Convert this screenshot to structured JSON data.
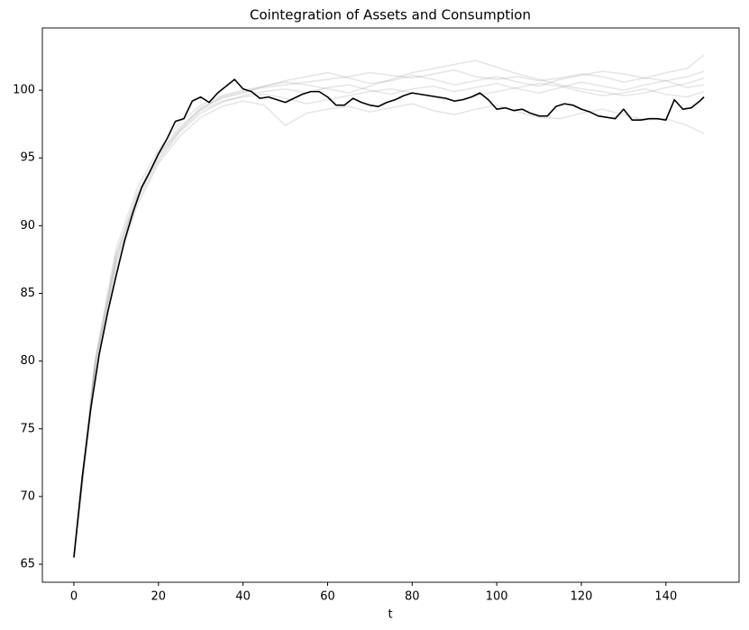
{
  "chart_data": {
    "type": "line",
    "title": "Cointegration of Assets and Consumption",
    "xlabel": "t",
    "xlim": [
      -7.45,
      157.3
    ],
    "ylim": [
      63.67,
      104.6
    ],
    "xticks": [
      0,
      20,
      40,
      60,
      80,
      100,
      120,
      140
    ],
    "yticks": [
      65,
      70,
      75,
      80,
      85,
      90,
      95,
      100
    ],
    "series": [
      {
        "color": "#808080",
        "alpha": 0.2,
        "x": [
          0,
          5,
          10,
          15,
          20,
          25,
          30,
          35,
          40,
          45,
          50,
          55,
          60,
          65,
          70,
          75,
          80,
          85,
          90,
          95,
          100,
          105,
          110,
          115,
          120,
          125,
          130,
          135,
          140,
          145,
          149
        ],
        "values": [
          65.5,
          79.8,
          87.9,
          92.4,
          95.3,
          97.3,
          98.6,
          99.5,
          99.9,
          100.2,
          100.4,
          100.6,
          100.8,
          101.0,
          101.3,
          101.1,
          100.9,
          101.2,
          101.5,
          101.0,
          100.8,
          101.0,
          100.7,
          100.9,
          101.2,
          101.0,
          100.6,
          100.9,
          101.3,
          101.6,
          102.6
        ]
      },
      {
        "color": "#808080",
        "alpha": 0.2,
        "x": [
          0,
          5,
          10,
          15,
          20,
          25,
          30,
          35,
          40,
          45,
          50,
          55,
          60,
          65,
          70,
          75,
          80,
          85,
          90,
          95,
          100,
          105,
          110,
          115,
          120,
          125,
          130,
          135,
          140,
          145,
          149
        ],
        "values": [
          65.5,
          79.2,
          87.2,
          91.8,
          94.8,
          96.9,
          98.3,
          99.1,
          99.6,
          99.9,
          100.1,
          99.8,
          100.2,
          100.4,
          100.0,
          99.7,
          100.1,
          100.3,
          99.9,
          100.2,
          100.5,
          100.1,
          99.8,
          100.2,
          100.6,
          100.3,
          100.0,
          100.4,
          100.7,
          100.2,
          100.4
        ]
      },
      {
        "color": "#808080",
        "alpha": 0.2,
        "x": [
          0,
          5,
          10,
          15,
          20,
          25,
          30,
          35,
          40,
          45,
          50,
          55,
          60,
          65,
          70,
          75,
          80,
          85,
          90,
          95,
          100,
          105,
          110,
          115,
          120,
          125,
          130,
          135,
          140,
          145,
          149
        ],
        "values": [
          65.5,
          78.9,
          86.8,
          91.5,
          94.6,
          96.6,
          98.0,
          98.8,
          99.2,
          98.9,
          97.4,
          98.3,
          98.6,
          98.8,
          98.4,
          98.7,
          99.0,
          98.5,
          98.2,
          98.6,
          98.9,
          98.4,
          98.0,
          97.9,
          98.3,
          98.6,
          98.2,
          97.8,
          97.9,
          97.4,
          96.8
        ]
      },
      {
        "color": "#808080",
        "alpha": 0.2,
        "x": [
          0,
          5,
          10,
          15,
          20,
          25,
          30,
          35,
          40,
          45,
          50,
          55,
          60,
          65,
          70,
          75,
          80,
          85,
          90,
          95,
          100,
          105,
          110,
          115,
          120,
          125,
          130,
          135,
          140,
          145,
          149
        ],
        "values": [
          65.5,
          80.1,
          88.3,
          92.8,
          95.6,
          97.6,
          98.9,
          99.6,
          100.0,
          100.3,
          100.6,
          100.4,
          100.1,
          99.8,
          100.3,
          100.8,
          101.3,
          101.6,
          101.9,
          102.2,
          101.7,
          101.2,
          100.8,
          100.4,
          100.1,
          99.9,
          99.6,
          99.8,
          100.2,
          100.5,
          100.9
        ]
      },
      {
        "color": "#808080",
        "alpha": 0.2,
        "x": [
          0,
          5,
          10,
          15,
          20,
          25,
          30,
          35,
          40,
          45,
          50,
          55,
          60,
          65,
          70,
          75,
          80,
          85,
          90,
          95,
          100,
          105,
          110,
          115,
          120,
          125,
          130,
          135,
          140,
          145,
          149
        ],
        "values": [
          65.5,
          79.5,
          87.5,
          92.1,
          95.0,
          97.0,
          98.5,
          99.2,
          99.5,
          99.7,
          99.4,
          99.0,
          99.3,
          99.6,
          99.9,
          100.1,
          99.8,
          99.5,
          99.2,
          99.6,
          99.9,
          100.2,
          100.5,
          100.3,
          99.9,
          99.6,
          99.8,
          100.1,
          99.7,
          99.5,
          99.9
        ]
      },
      {
        "color": "#808080",
        "alpha": 0.2,
        "x": [
          0,
          5,
          10,
          15,
          20,
          25,
          30,
          35,
          40,
          45,
          50,
          55,
          60,
          65,
          70,
          75,
          80,
          85,
          90,
          95,
          100,
          105,
          110,
          115,
          120,
          125,
          130,
          135,
          140,
          145,
          149
        ],
        "values": [
          65.5,
          79.7,
          87.7,
          92.2,
          95.2,
          97.1,
          98.7,
          99.4,
          99.8,
          100.3,
          100.7,
          101.0,
          101.3,
          100.9,
          100.5,
          100.7,
          101.1,
          100.8,
          100.4,
          100.7,
          101.0,
          100.6,
          100.3,
          100.8,
          101.1,
          101.4,
          101.2,
          100.9,
          100.7,
          101.0,
          101.4
        ]
      },
      {
        "color": "#000000",
        "alpha": 1,
        "x": [
          0,
          2,
          4,
          6,
          8,
          10,
          12,
          14,
          16,
          18,
          20,
          22,
          24,
          26,
          28,
          30,
          32,
          34,
          36,
          38,
          40,
          42,
          44,
          46,
          48,
          50,
          52,
          54,
          56,
          58,
          60,
          62,
          64,
          66,
          68,
          70,
          72,
          74,
          76,
          78,
          80,
          82,
          84,
          86,
          88,
          90,
          92,
          94,
          96,
          98,
          100,
          102,
          104,
          106,
          108,
          110,
          112,
          114,
          116,
          118,
          120,
          122,
          124,
          126,
          128,
          130,
          132,
          134,
          136,
          138,
          140,
          142,
          144,
          146,
          148,
          149
        ],
        "values": [
          65.5,
          71.5,
          76.5,
          80.5,
          83.6,
          86.3,
          88.9,
          91.0,
          92.8,
          94.0,
          95.3,
          96.4,
          97.7,
          97.9,
          99.2,
          99.5,
          99.1,
          99.8,
          100.3,
          100.8,
          100.1,
          99.9,
          99.4,
          99.5,
          99.3,
          99.1,
          99.4,
          99.7,
          99.9,
          99.9,
          99.5,
          98.9,
          98.9,
          99.4,
          99.1,
          98.9,
          98.8,
          99.1,
          99.3,
          99.6,
          99.8,
          99.7,
          99.6,
          99.5,
          99.4,
          99.2,
          99.3,
          99.5,
          99.8,
          99.3,
          98.6,
          98.7,
          98.5,
          98.6,
          98.3,
          98.1,
          98.1,
          98.8,
          99.0,
          98.9,
          98.6,
          98.4,
          98.1,
          98.0,
          97.9,
          98.6,
          97.8,
          97.8,
          97.9,
          97.9,
          97.8,
          99.3,
          98.6,
          98.7,
          99.2,
          99.5
        ]
      }
    ]
  }
}
